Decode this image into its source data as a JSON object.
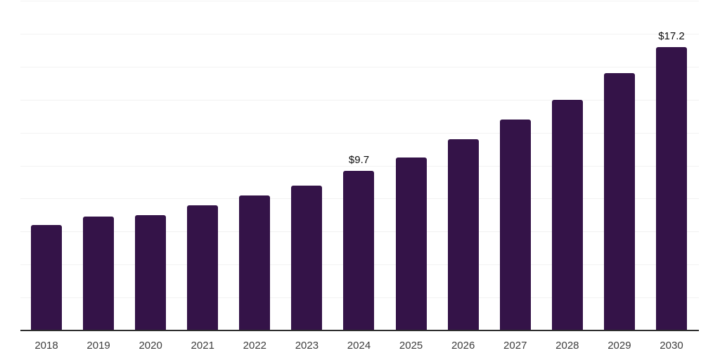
{
  "chart_data": {
    "type": "bar",
    "categories": [
      "2018",
      "2019",
      "2020",
      "2021",
      "2022",
      "2023",
      "2024",
      "2025",
      "2026",
      "2027",
      "2028",
      "2029",
      "2030"
    ],
    "values": [
      6.4,
      6.9,
      7.0,
      7.6,
      8.2,
      8.8,
      9.7,
      10.5,
      11.6,
      12.8,
      14.0,
      15.6,
      17.2
    ],
    "annotations": [
      {
        "category": "2024",
        "label": "$9.7"
      },
      {
        "category": "2030",
        "label": "$17.2"
      }
    ],
    "ylim": [
      0,
      20
    ],
    "grid_step": 2,
    "grid": true,
    "legend": false,
    "colors": {
      "bar": "#341348",
      "gridline": "#f2f2f2",
      "axis_line": "#2e2e2e",
      "x_tick_label": "#3d3d3d",
      "value_label": "#0d0d0d",
      "background": "#ffffff"
    }
  }
}
